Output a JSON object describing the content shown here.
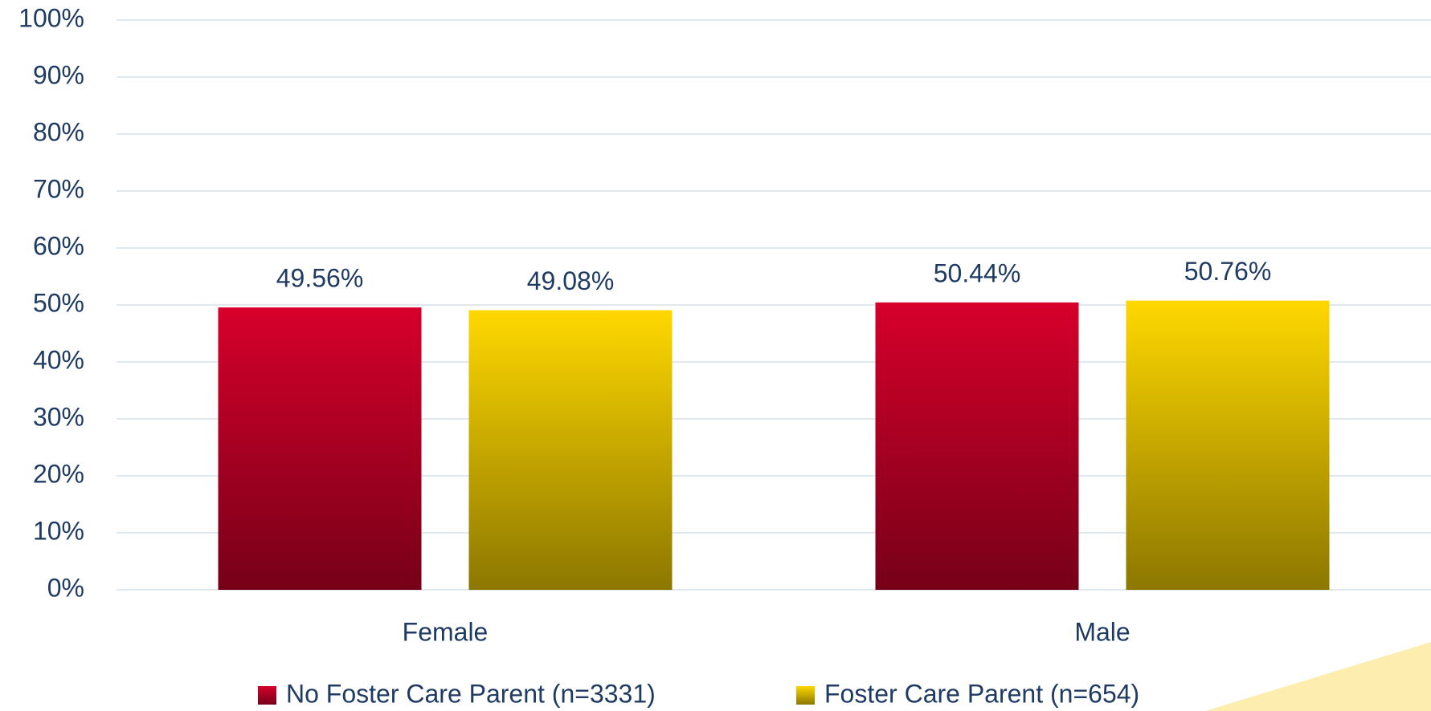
{
  "chart_data": {
    "type": "bar",
    "categories": [
      "Female",
      "Male"
    ],
    "series": [
      {
        "name": "No Foster Care Parent (n=3331)",
        "color": "#d6002b",
        "values": [
          49.56,
          50.44
        ],
        "value_labels": [
          "49.56%",
          "50.44%"
        ]
      },
      {
        "name": "Foster Care Parent (n=654)",
        "color": "#ffd800",
        "values": [
          49.08,
          50.76
        ],
        "value_labels": [
          "49.08%",
          "50.76%"
        ]
      }
    ],
    "ylim": [
      0,
      100
    ],
    "yticks": [
      {
        "value": 0,
        "label": "0%"
      },
      {
        "value": 10,
        "label": "10%"
      },
      {
        "value": 20,
        "label": "20%"
      },
      {
        "value": 30,
        "label": "30%"
      },
      {
        "value": 40,
        "label": "40%"
      },
      {
        "value": 50,
        "label": "50%"
      },
      {
        "value": 60,
        "label": "60%"
      },
      {
        "value": 70,
        "label": "70%"
      },
      {
        "value": 80,
        "label": "80%"
      },
      {
        "value": 90,
        "label": "90%"
      },
      {
        "value": 100,
        "label": "100%"
      }
    ],
    "grid": true,
    "legend": "bottom"
  }
}
